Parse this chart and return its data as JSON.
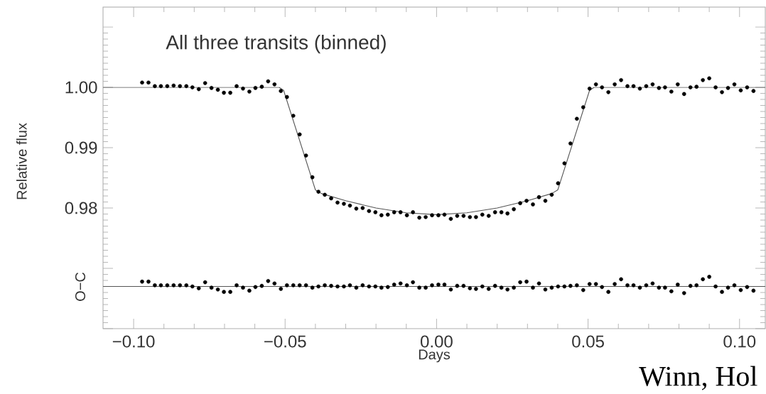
{
  "chart_data": {
    "type": "scatter",
    "title": "All three transits (binned)",
    "xlabel": "Days",
    "ylabel": "Relative flux",
    "annotations": [
      "O−C",
      "Winn, Hol"
    ],
    "xlim": [
      -0.1101,
      0.1085
    ],
    "ylim": [
      0.96,
      1.0133
    ],
    "xticks": [
      {
        "value": -0.1,
        "label": "−0.10"
      },
      {
        "value": -0.05,
        "label": "−0.05"
      },
      {
        "value": 0,
        "label": "0.00"
      },
      {
        "value": 0.05,
        "label": "0.05"
      },
      {
        "value": 0.1,
        "label": "0.10"
      }
    ],
    "yticks": [
      {
        "value": 0.96,
        "label": null
      },
      {
        "value": 0.97,
        "label": null
      },
      {
        "value": 0.98,
        "label": "0.98"
      },
      {
        "value": 0.99,
        "label": "0.99"
      },
      {
        "value": 1.0,
        "label": "1.00"
      },
      {
        "value": 1.01,
        "label": null
      }
    ],
    "ref_lines": [
      {
        "axis": "y",
        "value": 0.967,
        "color": "#555555"
      }
    ],
    "series": [
      {
        "type": "line",
        "marker": "none",
        "color": "#555555",
        "x": [
          -0.1101,
          -0.052,
          -0.0505,
          -0.04,
          -0.038,
          -0.03,
          -0.02,
          -0.01,
          0,
          0.01,
          0.02,
          0.03,
          0.038,
          0.04,
          0.0505,
          0.052,
          0.1085
        ],
        "values": [
          1.0,
          1.0,
          0.9995,
          0.983,
          0.9824,
          0.9812,
          0.98,
          0.9792,
          0.9789,
          0.9792,
          0.98,
          0.9812,
          0.9824,
          0.983,
          0.9995,
          1.0,
          1.0
        ]
      },
      {
        "marker": "circle",
        "color": "#000000",
        "x": [
          -0.0972,
          -0.0951,
          -0.093,
          -0.091,
          -0.0889,
          -0.0868,
          -0.0847,
          -0.0826,
          -0.0806,
          -0.0785,
          -0.0764,
          -0.0743,
          -0.0722,
          -0.0702,
          -0.0681,
          -0.066,
          -0.0639,
          -0.0618,
          -0.0598,
          -0.0577,
          -0.0556,
          -0.0535,
          -0.0514,
          -0.0494,
          -0.0473,
          -0.0452,
          -0.0431,
          -0.041,
          -0.039,
          -0.0369,
          -0.0348,
          -0.0327,
          -0.0306,
          -0.0286,
          -0.0265,
          -0.0244,
          -0.0223,
          -0.0202,
          -0.0182,
          -0.0161,
          -0.014,
          -0.0119,
          -0.0098,
          -0.0078,
          -0.0057,
          -0.0036,
          -0.0015,
          0.0006,
          0.0026,
          0.0047,
          0.0068,
          0.0089,
          0.011,
          0.013,
          0.0151,
          0.0172,
          0.0193,
          0.0214,
          0.0234,
          0.0255,
          0.0276,
          0.0297,
          0.0318,
          0.0338,
          0.0359,
          0.038,
          0.0401,
          0.0422,
          0.0442,
          0.0463,
          0.0484,
          0.0505,
          0.0526,
          0.0546,
          0.0567,
          0.0588,
          0.0609,
          0.063,
          0.065,
          0.0671,
          0.0692,
          0.0713,
          0.0734,
          0.0754,
          0.0775,
          0.0796,
          0.0817,
          0.0838,
          0.0858,
          0.0879,
          0.09,
          0.0921,
          0.0942,
          0.0962,
          0.0983,
          0.1004,
          0.1025,
          0.1046
        ],
        "values": [
          1.0008,
          1.0008,
          1.0002,
          1.0002,
          1.0002,
          1.0003,
          1.0002,
          1.0002,
          1.0,
          0.9997,
          1.0007,
          0.9999,
          0.9996,
          0.9991,
          0.9991,
          1.0002,
          0.9998,
          0.9993,
          0.9999,
          1.0001,
          1.001,
          1.0005,
          0.9994,
          0.9984,
          0.9953,
          0.9922,
          0.9887,
          0.9851,
          0.9827,
          0.9822,
          0.9816,
          0.9809,
          0.9807,
          0.9804,
          0.9799,
          0.98,
          0.9795,
          0.9793,
          0.9788,
          0.9789,
          0.9793,
          0.9793,
          0.9788,
          0.9793,
          0.9784,
          0.9785,
          0.9788,
          0.9788,
          0.9789,
          0.9782,
          0.9787,
          0.9787,
          0.9785,
          0.9785,
          0.9789,
          0.9787,
          0.9793,
          0.9793,
          0.9791,
          0.9798,
          0.9808,
          0.9812,
          0.9806,
          0.9818,
          0.9812,
          0.9822,
          0.9841,
          0.9874,
          0.9907,
          0.9948,
          0.9967,
          0.9998,
          1.0005,
          1.0,
          0.9992,
          1.0005,
          1.0012,
          1.0002,
          1.0002,
          0.9998,
          1.0002,
          1.0005,
          0.9999,
          1.0,
          0.9993,
          1.0005,
          0.9989,
          1.0,
          1.0001,
          1.0012,
          1.0015,
          1.0,
          0.9992,
          0.9999,
          1.0005,
          0.9995,
          1.0,
          0.9994
        ]
      },
      {
        "marker": "circle",
        "color": "#000000",
        "x": [
          -0.0972,
          -0.0951,
          -0.093,
          -0.091,
          -0.0889,
          -0.0868,
          -0.0847,
          -0.0826,
          -0.0806,
          -0.0785,
          -0.0764,
          -0.0743,
          -0.0722,
          -0.0702,
          -0.0681,
          -0.066,
          -0.0639,
          -0.0618,
          -0.0598,
          -0.0577,
          -0.0556,
          -0.0535,
          -0.0514,
          -0.0494,
          -0.0473,
          -0.0452,
          -0.0431,
          -0.041,
          -0.039,
          -0.0369,
          -0.0348,
          -0.0327,
          -0.0306,
          -0.0286,
          -0.0265,
          -0.0244,
          -0.0223,
          -0.0202,
          -0.0182,
          -0.0161,
          -0.014,
          -0.0119,
          -0.0098,
          -0.0078,
          -0.0057,
          -0.0036,
          -0.0015,
          0.0006,
          0.0026,
          0.0047,
          0.0068,
          0.0089,
          0.011,
          0.013,
          0.0151,
          0.0172,
          0.0193,
          0.0214,
          0.0234,
          0.0255,
          0.0276,
          0.0297,
          0.0318,
          0.0338,
          0.0359,
          0.038,
          0.0401,
          0.0422,
          0.0442,
          0.0463,
          0.0484,
          0.0505,
          0.0526,
          0.0546,
          0.0567,
          0.0588,
          0.0609,
          0.063,
          0.065,
          0.0671,
          0.0692,
          0.0713,
          0.0734,
          0.0754,
          0.0775,
          0.0796,
          0.0817,
          0.0838,
          0.0858,
          0.0879,
          0.09,
          0.0921,
          0.0942,
          0.0962,
          0.0983,
          0.1004,
          0.1025,
          0.1046
        ],
        "values": [
          0.9678,
          0.9678,
          0.9672,
          0.9672,
          0.9672,
          0.9672,
          0.9672,
          0.9672,
          0.967,
          0.9667,
          0.9677,
          0.9668,
          0.9665,
          0.9661,
          0.9661,
          0.9672,
          0.9668,
          0.9663,
          0.9669,
          0.9671,
          0.9679,
          0.9675,
          0.9666,
          0.9672,
          0.9672,
          0.9672,
          0.9672,
          0.9668,
          0.967,
          0.9672,
          0.9671,
          0.967,
          0.967,
          0.9672,
          0.9668,
          0.9672,
          0.967,
          0.967,
          0.9668,
          0.9669,
          0.9673,
          0.9675,
          0.9672,
          0.9677,
          0.9668,
          0.9668,
          0.9672,
          0.9673,
          0.9673,
          0.9665,
          0.9671,
          0.9671,
          0.9667,
          0.9666,
          0.967,
          0.9666,
          0.9671,
          0.9668,
          0.9665,
          0.9668,
          0.9677,
          0.9678,
          0.9668,
          0.9675,
          0.9665,
          0.9668,
          0.967,
          0.967,
          0.9671,
          0.9672,
          0.9664,
          0.9674,
          0.9674,
          0.9669,
          0.9661,
          0.9674,
          0.9682,
          0.9672,
          0.9672,
          0.9668,
          0.9672,
          0.9675,
          0.9668,
          0.9668,
          0.9662,
          0.9673,
          0.9659,
          0.9671,
          0.9672,
          0.9682,
          0.9686,
          0.967,
          0.9661,
          0.9668,
          0.9672,
          0.9664,
          0.9669,
          0.9663
        ]
      }
    ]
  }
}
